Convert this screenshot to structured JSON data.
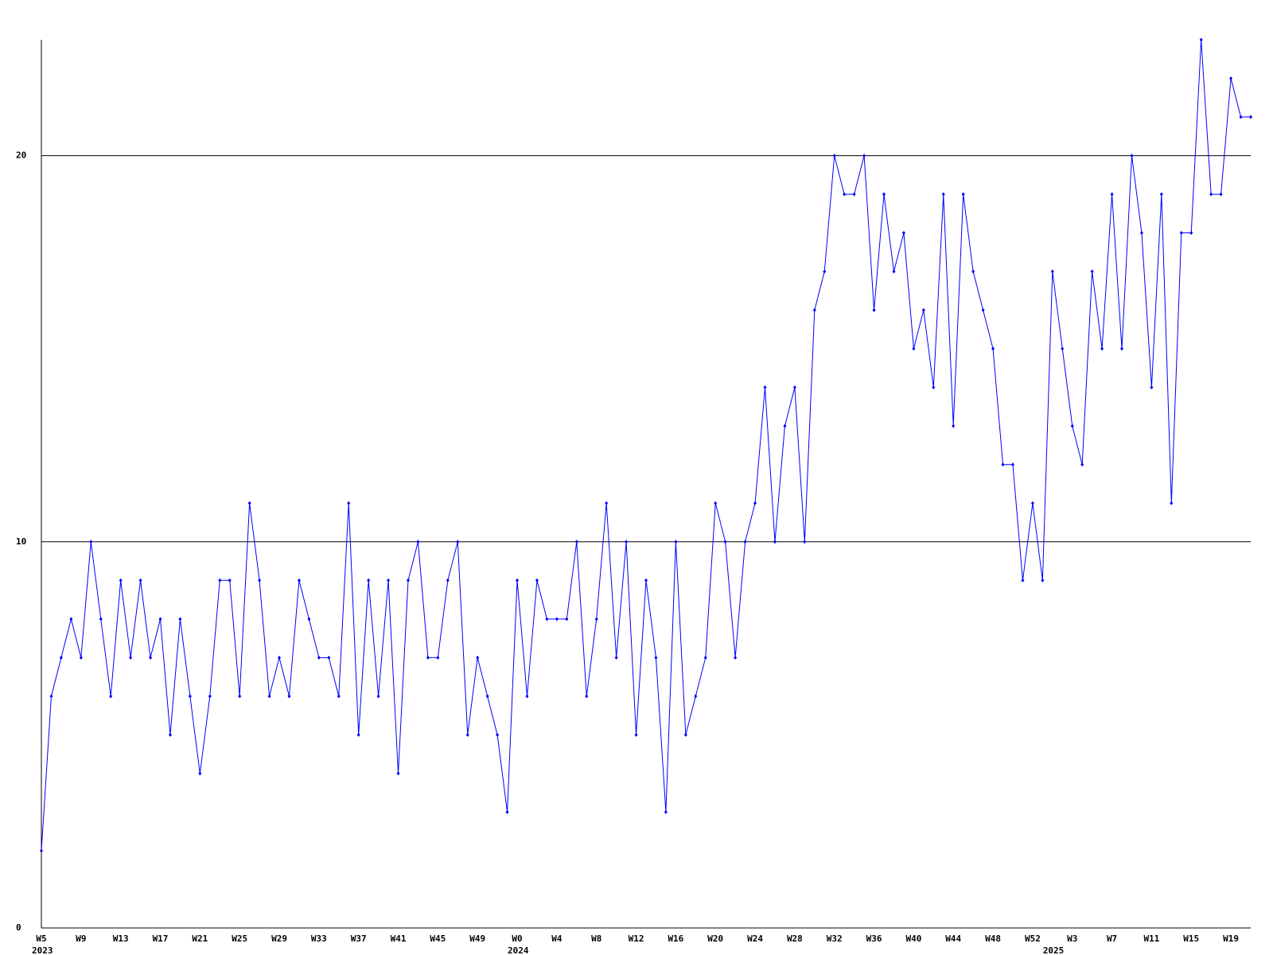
{
  "chart_data": {
    "type": "line",
    "categories": [
      "W5",
      null,
      null,
      null,
      "W9",
      null,
      null,
      null,
      "W13",
      null,
      null,
      null,
      "W17",
      null,
      null,
      null,
      "W21",
      null,
      null,
      null,
      "W25",
      null,
      null,
      null,
      "W29",
      null,
      null,
      null,
      "W33",
      null,
      null,
      null,
      "W37",
      null,
      null,
      null,
      "W41",
      null,
      null,
      null,
      "W45",
      null,
      null,
      null,
      "W49",
      null,
      null,
      null,
      "W0",
      null,
      null,
      null,
      "W4",
      null,
      null,
      null,
      "W8",
      null,
      null,
      null,
      "W12",
      null,
      null,
      null,
      "W16",
      null,
      null,
      null,
      "W20",
      null,
      null,
      null,
      "W24",
      null,
      null,
      null,
      "W28",
      null,
      null,
      null,
      "W32",
      null,
      null,
      null,
      "W36",
      null,
      null,
      null,
      "W40",
      null,
      null,
      null,
      "W44",
      null,
      null,
      null,
      "W48",
      null,
      null,
      null,
      "W52",
      null,
      null,
      null,
      "W3",
      null,
      null,
      null,
      "W7",
      null,
      null,
      null,
      "W11",
      null,
      null,
      null,
      "W15",
      null,
      null,
      null,
      "W19",
      null,
      null
    ],
    "years": [
      "2023",
      null,
      null,
      null,
      null,
      null,
      null,
      null,
      null,
      null,
      null,
      null,
      null,
      null,
      null,
      null,
      null,
      null,
      null,
      null,
      null,
      null,
      null,
      null,
      null,
      null,
      null,
      null,
      null,
      null,
      null,
      null,
      null,
      null,
      null,
      null,
      null,
      null,
      null,
      null,
      null,
      null,
      null,
      null,
      null,
      null,
      null,
      null,
      "2024",
      null,
      null,
      null,
      null,
      null,
      null,
      null,
      null,
      null,
      null,
      null,
      null,
      null,
      null,
      null,
      null,
      null,
      null,
      null,
      null,
      null,
      null,
      null,
      null,
      null,
      null,
      null,
      null,
      null,
      null,
      null,
      null,
      null,
      null,
      null,
      null,
      null,
      null,
      null,
      null,
      null,
      null,
      null,
      null,
      null,
      null,
      null,
      null,
      null,
      null,
      null,
      null,
      null,
      "2025",
      null,
      null,
      null,
      null,
      null,
      null,
      null,
      null,
      null,
      null,
      null,
      null,
      null,
      null,
      null,
      null,
      null,
      null,
      null,
      null
    ],
    "series": [
      {
        "color": "#0000ff",
        "values": [
          2,
          6,
          7,
          8,
          7,
          10,
          8,
          6,
          9,
          7,
          9,
          7,
          8,
          5,
          8,
          6,
          4,
          6,
          9,
          9,
          6,
          11,
          9,
          6,
          7,
          6,
          9,
          8,
          7,
          7,
          6,
          11,
          5,
          9,
          6,
          9,
          4,
          9,
          10,
          7,
          7,
          9,
          10,
          5,
          7,
          6,
          5,
          3,
          9,
          6,
          9,
          8,
          8,
          8,
          10,
          6,
          8,
          11,
          7,
          10,
          5,
          9,
          7,
          3,
          10,
          5,
          6,
          7,
          11,
          10,
          7,
          10,
          11,
          14,
          10,
          13,
          14,
          10,
          16,
          17,
          20,
          19,
          19,
          20,
          16,
          19,
          17,
          18,
          15,
          16,
          14,
          19,
          13,
          19,
          17,
          16,
          15,
          12,
          12,
          9,
          11,
          9,
          17,
          15,
          13,
          12,
          17,
          15,
          19,
          15,
          20,
          18,
          14,
          19,
          11,
          18,
          18,
          23,
          19,
          19,
          22,
          21,
          21
        ]
      }
    ],
    "ylim": [
      0,
      23
    ],
    "yticks": [
      0,
      10,
      20
    ],
    "grid": true
  }
}
